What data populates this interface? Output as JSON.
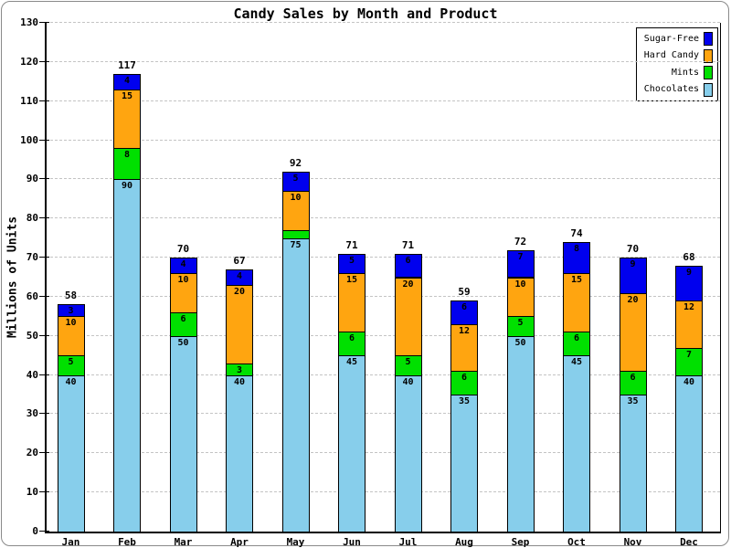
{
  "chart_data": {
    "type": "bar",
    "stacked": true,
    "title": "Candy Sales by Month and Product",
    "xlabel": "",
    "ylabel": "Millions of Units",
    "ylim": [
      0,
      130
    ],
    "ytick_step": 10,
    "grid": "horizontal-dashed",
    "legend_position": "top-right",
    "categories": [
      "Jan",
      "Feb",
      "Mar",
      "Apr",
      "May",
      "Jun",
      "Jul",
      "Aug",
      "Sep",
      "Oct",
      "Nov",
      "Dec"
    ],
    "series": [
      {
        "name": "Chocolates",
        "color": "#87CEEB",
        "values": [
          40,
          90,
          50,
          40,
          75,
          45,
          40,
          35,
          50,
          45,
          35,
          40
        ]
      },
      {
        "name": "Mints",
        "color": "#00E000",
        "values": [
          5,
          8,
          6,
          3,
          2,
          6,
          5,
          6,
          5,
          6,
          6,
          7
        ]
      },
      {
        "name": "Hard Candy",
        "color": "#FFA510",
        "values": [
          10,
          15,
          10,
          20,
          10,
          15,
          20,
          12,
          10,
          15,
          20,
          12
        ]
      },
      {
        "name": "Sugar-Free",
        "color": "#0000EE",
        "values": [
          3,
          4,
          4,
          4,
          5,
          5,
          6,
          6,
          7,
          8,
          9,
          9
        ]
      }
    ],
    "totals": [
      58,
      117,
      70,
      67,
      92,
      71,
      71,
      59,
      72,
      74,
      70,
      68
    ],
    "legend_entries": [
      "Sugar-Free",
      "Hard Candy",
      "Mints",
      "Chocolates"
    ],
    "value_label_min": 3
  },
  "colors": {
    "grid": "#c4c4c4",
    "axis": "#000000",
    "text": "#000000",
    "frame": "#8a8a8a",
    "background": "#ffffff"
  }
}
